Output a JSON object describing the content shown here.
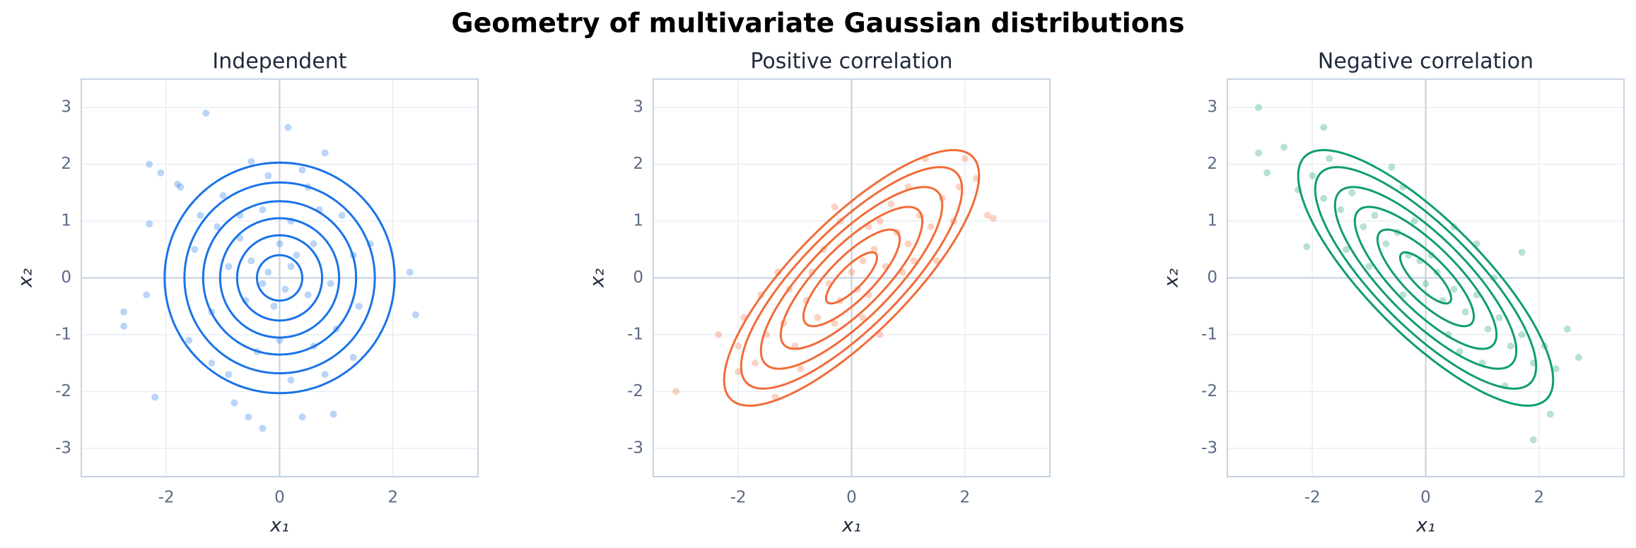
{
  "title": "Geometry of multivariate Gaussian distributions",
  "chart_data": [
    {
      "type": "scatter",
      "title": "Independent",
      "xlabel": "x₁",
      "ylabel": "x₂",
      "xlim": [
        -3.5,
        3.5
      ],
      "ylim": [
        -3.5,
        3.5
      ],
      "xticks": [
        -2,
        0,
        2
      ],
      "yticks": [
        -3,
        -2,
        -1,
        0,
        1,
        2,
        3
      ],
      "color": "#1a73e8",
      "grid": true,
      "x": [
        -1.3,
        0.15,
        -2.3,
        -2.1,
        -1.8,
        -1.75,
        0.8,
        -0.5,
        -0.2,
        0.4,
        0.5,
        -1.0,
        -0.7,
        -1.4,
        -1.1,
        -0.3,
        0.2,
        0.7,
        1.1,
        1.6,
        1.3,
        -2.35,
        -2.3,
        -2.75,
        -2.75,
        -2.2,
        -0.8,
        -0.55,
        -0.3,
        0.4,
        0.95,
        2.3,
        2.4,
        -0.5,
        -0.2,
        0.1,
        0.3,
        -0.1,
        0.5,
        -0.6,
        -0.9,
        0.9,
        -1.2,
        -1.6,
        -1.2,
        -0.4,
        0.0,
        0.6,
        1.0,
        1.4,
        0.8,
        -0.9,
        0.2,
        1.3,
        -1.5,
        0.0,
        -0.3,
        0.2,
        0.6,
        -0.7
      ],
      "y": [
        2.9,
        2.65,
        2.0,
        1.85,
        1.65,
        1.6,
        2.2,
        2.05,
        1.8,
        1.9,
        1.6,
        1.45,
        1.1,
        1.1,
        0.9,
        1.2,
        1.0,
        1.2,
        1.1,
        0.6,
        0.4,
        -0.3,
        0.95,
        -0.6,
        -0.85,
        -2.1,
        -2.2,
        -2.45,
        -2.65,
        -2.45,
        -2.4,
        0.1,
        -0.65,
        0.3,
        0.1,
        -0.2,
        0.4,
        -0.5,
        -0.3,
        -0.4,
        0.2,
        -0.1,
        -0.6,
        -1.1,
        -1.5,
        -1.3,
        -1.1,
        -1.2,
        -0.9,
        -0.5,
        -1.7,
        -1.7,
        -1.8,
        -1.4,
        0.5,
        0.6,
        -0.1,
        0.2,
        0.6,
        0.7
      ],
      "contours": {
        "cov": [
          [
            1,
            0
          ],
          [
            0,
            1
          ]
        ],
        "levels": [
          0.4,
          0.75,
          1.05,
          1.35,
          1.68,
          2.03
        ]
      }
    },
    {
      "type": "scatter",
      "title": "Positive correlation",
      "xlabel": "x₁",
      "ylabel": "x₂",
      "xlim": [
        -3.5,
        3.5
      ],
      "ylim": [
        -3.5,
        3.5
      ],
      "xticks": [
        -2,
        0,
        2
      ],
      "yticks": [
        -3,
        -2,
        -1,
        0,
        1,
        2,
        3
      ],
      "color": "#f26b38",
      "grid": true,
      "x": [
        -3.1,
        -2.35,
        -2.0,
        -1.35,
        1.3,
        2.0,
        2.2,
        2.5,
        2.4,
        -1.9,
        0.5,
        -1.7,
        -1.5,
        -1.2,
        -1.0,
        -0.8,
        -0.6,
        -0.4,
        -0.2,
        0.0,
        0.2,
        0.1,
        0.4,
        0.6,
        0.8,
        1.0,
        1.2,
        1.4,
        1.6,
        1.8,
        -0.5,
        -0.2,
        -0.3,
        0.3,
        0.7,
        1.0,
        -1.3,
        -0.9,
        -0.3,
        0.3,
        0.9,
        1.5,
        -2.0,
        -1.6,
        0.5,
        -0.7,
        0.2,
        1.1,
        -1.1,
        1.9
      ],
      "y": [
        -2.0,
        -1.0,
        -1.65,
        -2.1,
        2.1,
        2.1,
        1.75,
        1.05,
        1.1,
        -0.7,
        -1.0,
        -1.5,
        -1.0,
        -0.8,
        -1.2,
        -0.4,
        -0.7,
        -0.1,
        -0.4,
        0.1,
        0.3,
        -0.2,
        0.5,
        0.2,
        0.8,
        0.6,
        1.1,
        0.9,
        1.4,
        1.0,
        0.5,
        1.0,
        1.25,
        0.9,
        1.3,
        1.6,
        0.1,
        -1.6,
        -0.8,
        -0.3,
        0.1,
        0.3,
        -1.2,
        -0.3,
        1.0,
        0.1,
        -0.7,
        0.3,
        -0.2,
        1.6
      ],
      "contours": {
        "cov": [
          [
            1,
            0.8
          ],
          [
            0.8,
            1
          ]
        ],
        "levels": [
          0.45,
          0.85,
          1.25,
          1.6,
          1.95,
          2.25
        ]
      }
    },
    {
      "type": "scatter",
      "title": "Negative correlation",
      "xlabel": "x₁",
      "ylabel": "x₂",
      "xlim": [
        -3.5,
        3.5
      ],
      "ylim": [
        -3.5,
        3.5
      ],
      "xticks": [
        -2,
        0,
        2
      ],
      "yticks": [
        -3,
        -2,
        -1,
        0,
        1,
        2,
        3
      ],
      "color": "#0f9d6f",
      "grid": true,
      "x": [
        -2.95,
        -2.95,
        -2.8,
        -2.5,
        -2.25,
        -2.1,
        -1.8,
        -1.7,
        1.9,
        2.2,
        2.5,
        2.7,
        1.7,
        -2.0,
        -1.8,
        -1.5,
        -1.3,
        -1.1,
        -0.9,
        -0.7,
        -0.5,
        -0.3,
        -0.1,
        0.0,
        0.2,
        0.3,
        0.5,
        0.7,
        0.9,
        1.1,
        1.3,
        1.5,
        1.7,
        1.9,
        2.1,
        2.3,
        -0.6,
        -0.4,
        0.5,
        0.9,
        -1.0,
        -0.4,
        0.4,
        1.0,
        -1.4,
        0.1,
        0.6,
        1.4,
        -0.2,
        1.2
      ],
      "y": [
        3.0,
        2.2,
        1.85,
        2.3,
        1.55,
        0.55,
        2.65,
        2.1,
        -2.85,
        -2.4,
        -0.9,
        -1.4,
        0.45,
        1.8,
        1.4,
        1.2,
        1.5,
        0.9,
        1.1,
        0.6,
        0.8,
        0.4,
        0.3,
        -0.1,
        0.1,
        -0.4,
        -0.2,
        -0.6,
        -0.3,
        -0.9,
        -0.7,
        -1.2,
        -1.0,
        -1.5,
        -1.2,
        -1.6,
        1.95,
        1.6,
        0.9,
        0.6,
        0.2,
        -0.3,
        -1.0,
        -1.5,
        0.5,
        0.4,
        -1.3,
        -1.9,
        1.0,
        0.0
      ],
      "contours": {
        "cov": [
          [
            1,
            -0.8
          ],
          [
            -0.8,
            1
          ]
        ],
        "levels": [
          0.45,
          0.85,
          1.25,
          1.6,
          1.95,
          2.25
        ]
      }
    }
  ]
}
